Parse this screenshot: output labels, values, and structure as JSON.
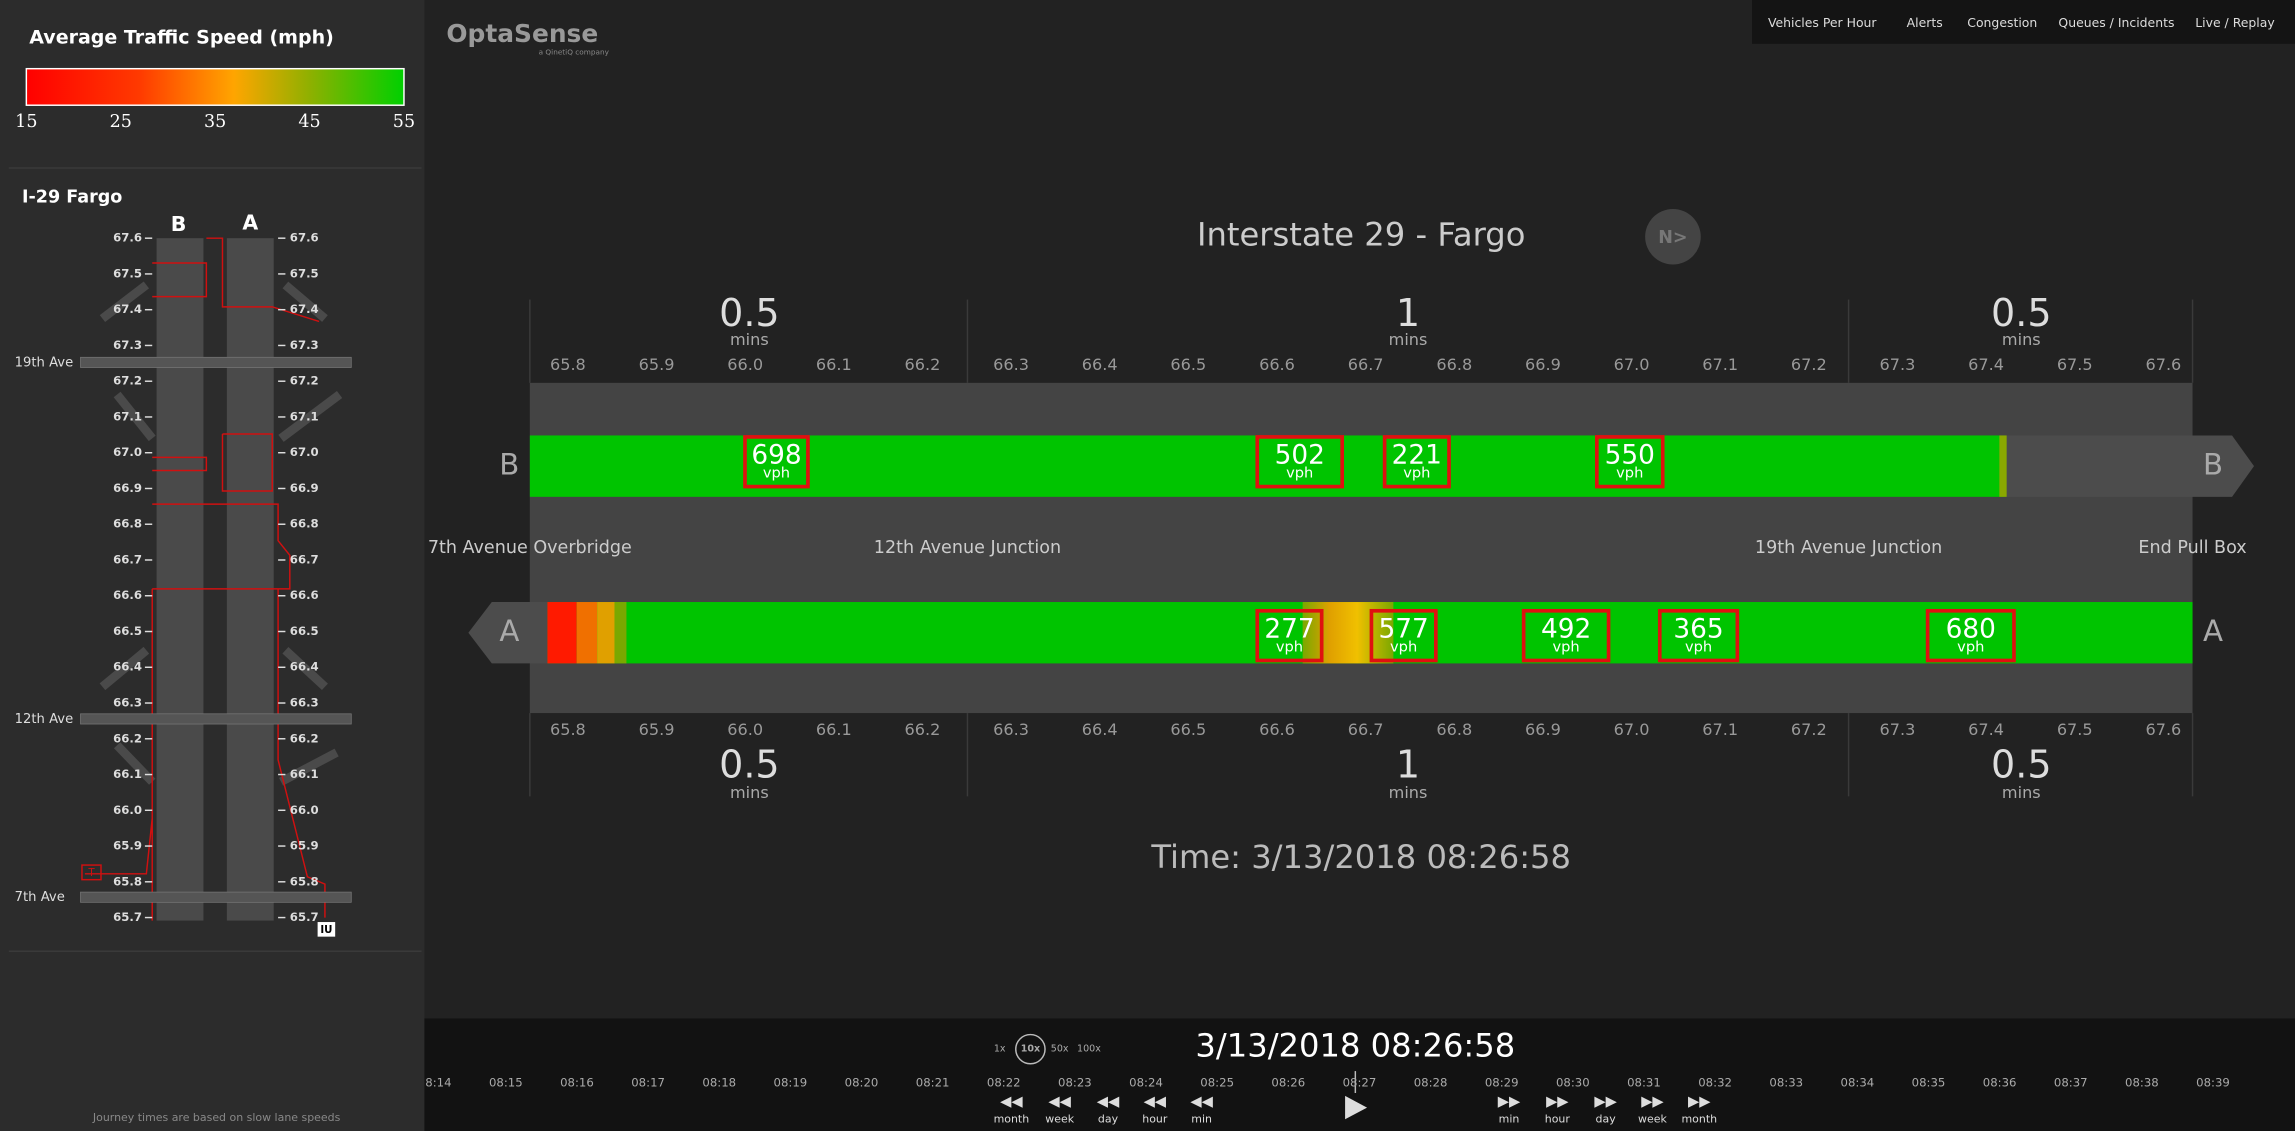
{
  "legend": {
    "title": "Average Traffic Speed (mph)",
    "ticks": [
      15,
      25,
      35,
      45,
      55
    ]
  },
  "sidebar": {
    "title": "I-29 Fargo",
    "lanes": [
      "B",
      "A"
    ],
    "mileposts": [
      "67.6",
      "67.5",
      "67.4",
      "67.3",
      "67.2",
      "67.1",
      "67.0",
      "66.9",
      "66.8",
      "66.7",
      "66.6",
      "66.5",
      "66.4",
      "66.3",
      "66.2",
      "66.1",
      "66.0",
      "65.9",
      "65.8",
      "65.7"
    ],
    "streets": [
      "19th Ave",
      "12th Ave",
      "7th Ave"
    ],
    "markers": [
      "T",
      "IU"
    ],
    "note": "Journey times are based on slow lane speeds"
  },
  "header": {
    "logo": "OptaSense",
    "tagline": "a QinetiQ company"
  },
  "nav": [
    "Vehicles Per Hour",
    "Alerts",
    "Congestion",
    "Queues / Incidents",
    "Live / Replay"
  ],
  "main": {
    "title": "Interstate 29 - Fargo",
    "compass": "N>",
    "journey_top": [
      {
        "time": 0.5,
        "unit": "mins"
      },
      {
        "time": 1,
        "unit": "mins"
      },
      {
        "time": 0.5,
        "unit": "mins"
      }
    ],
    "journey_bottom": [
      {
        "time": 0.5,
        "unit": "mins"
      },
      {
        "time": 1,
        "unit": "mins"
      },
      {
        "time": 0.5,
        "unit": "mins"
      }
    ],
    "mileposts_top": [
      "65.8",
      "65.9",
      "66.0",
      "66.1",
      "66.2",
      "66.3",
      "66.4",
      "66.5",
      "66.6",
      "66.7",
      "66.8",
      "66.9",
      "67.0",
      "67.1",
      "67.2",
      "67.3",
      "67.4",
      "67.5",
      "67.6"
    ],
    "mileposts_bottom": [
      "65.8",
      "65.9",
      "66.0",
      "66.1",
      "66.2",
      "66.3",
      "66.4",
      "66.5",
      "66.6",
      "66.7",
      "66.8",
      "66.9",
      "67.0",
      "67.1",
      "67.2",
      "67.3",
      "67.4",
      "67.5",
      "67.6"
    ],
    "junctions": [
      "7th Avenue Overbridge",
      "12th Avenue Junction",
      "19th Avenue Junction",
      "End Pull Box"
    ],
    "lanes": [
      {
        "name": "B",
        "counts": [
          {
            "value": 698,
            "unit": "vph"
          },
          {
            "value": 502,
            "unit": "vph"
          },
          {
            "value": 221,
            "unit": "vph"
          },
          {
            "value": 550,
            "unit": "vph"
          }
        ]
      },
      {
        "name": "A",
        "counts": [
          {
            "value": 277,
            "unit": "vph"
          },
          {
            "value": 577,
            "unit": "vph"
          },
          {
            "value": 492,
            "unit": "vph"
          },
          {
            "value": 365,
            "unit": "vph"
          },
          {
            "value": 680,
            "unit": "vph"
          }
        ]
      }
    ],
    "time": "Time: 3/13/2018 08:26:58"
  },
  "playback": {
    "speeds": [
      "1x",
      "10x",
      "50x",
      "100x"
    ],
    "datetime": "3/13/2018 08:26:58",
    "timeline": [
      "08:14",
      "08:15",
      "08:16",
      "08:17",
      "08:18",
      "08:19",
      "08:20",
      "08:21",
      "08:22",
      "08:23",
      "08:24",
      "08:25",
      "08:26",
      "08:27",
      "08:28",
      "08:29",
      "08:30",
      "08:31",
      "08:32",
      "08:33",
      "08:34",
      "08:35",
      "08:36",
      "08:37",
      "08:38",
      "08:39"
    ],
    "back": [
      "month",
      "week",
      "day",
      "hour",
      "min"
    ],
    "forward": [
      "min",
      "hour",
      "day",
      "week",
      "month"
    ]
  }
}
